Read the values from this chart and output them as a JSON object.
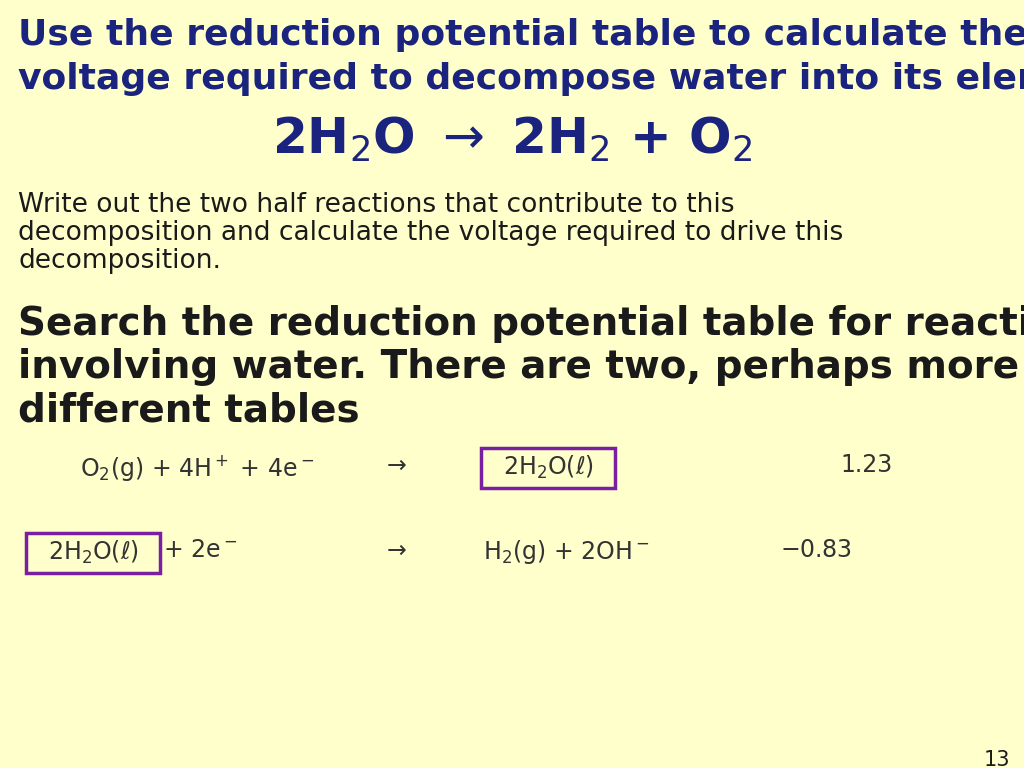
{
  "background_color": "#FFFFCC",
  "title_line1": "Use the reduction potential table to calculate the",
  "title_line2": "voltage required to decompose water into its elements.",
  "title_color": "#1a237e",
  "title_fontsize": 26,
  "equation_color": "#1a237e",
  "equation_fontsize": 36,
  "body_text1_line1": "Write out the two half reactions that contribute to this",
  "body_text1_line2": "decomposition and calculate the voltage required to drive this",
  "body_text1_line3": "decomposition.",
  "body_text1_color": "#1a1a1a",
  "body_text1_fontsize": 19,
  "body_text2_line1": "Search the reduction potential table for reactions",
  "body_text2_line2": "involving water. There are two, perhaps more on",
  "body_text2_line3": "different tables",
  "body_text2_color": "#1a1a1a",
  "body_text2_fontsize": 28,
  "reaction_fontsize": 17,
  "box_color": "#7b1fa2",
  "page_number": "13",
  "page_number_color": "#1a1a1a",
  "page_number_fontsize": 15
}
